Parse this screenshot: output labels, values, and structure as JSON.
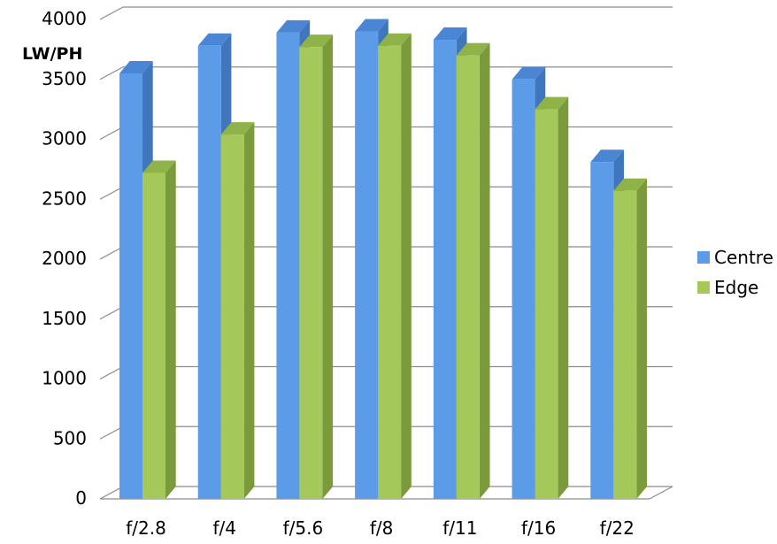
{
  "chart_data": {
    "type": "bar",
    "ylabel": "LW/PH",
    "xlabel": "",
    "title": "",
    "ylim": [
      0,
      4000
    ],
    "y_ticks": [
      "0",
      "500",
      "1000",
      "1500",
      "2000",
      "2500",
      "3000",
      "3500",
      "4000"
    ],
    "categories": [
      "f/2.8",
      "f/4",
      "f/5.6",
      "f/8",
      "f/11",
      "f/16",
      "f/22"
    ],
    "series": [
      {
        "name": "Centre",
        "values": [
          3550,
          3780,
          3890,
          3900,
          3830,
          3500,
          2810
        ],
        "color": "#5b9be8",
        "side_color": "#3f76bc",
        "top_color": "#4a86d4"
      },
      {
        "name": "Edge",
        "values": [
          2720,
          3040,
          3770,
          3780,
          3700,
          3250,
          2570
        ],
        "color": "#a4c85a",
        "side_color": "#7a9a3c",
        "top_color": "#8fb348"
      }
    ],
    "grid": true,
    "style": "3d-clustered-column",
    "legend_position": "right"
  }
}
